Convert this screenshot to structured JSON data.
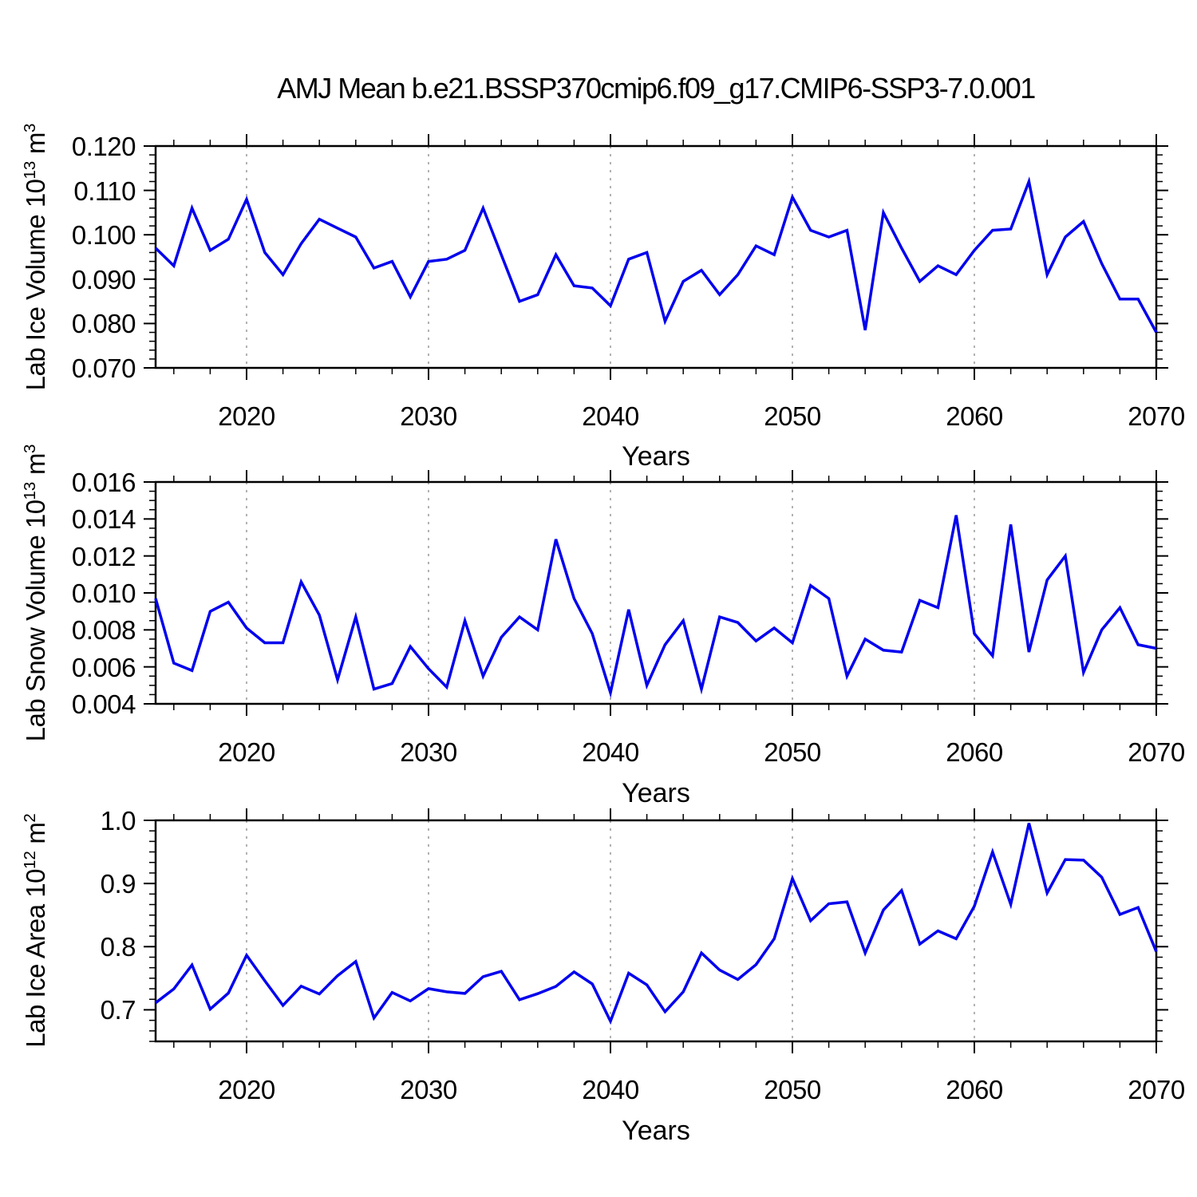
{
  "title": "AMJ Mean b.e21.BSSP370cmip6.f09_g17.CMIP6-SSP3-7.0.001",
  "line_color": "#0000ee",
  "grid_color": "#999999",
  "frame_color": "#000000",
  "x_axis": {
    "label": "Years",
    "range": [
      2015,
      2070
    ],
    "tick_labels": [
      "2020",
      "2030",
      "2040",
      "2050",
      "2060",
      "2070"
    ],
    "minor_step_years": 2,
    "gridline_years": [
      2020,
      2030,
      2040,
      2050,
      2060
    ]
  },
  "chart_data": [
    {
      "type": "line",
      "panel": "lab-ice-volume",
      "ylabel": {
        "pre": "Lab Ice Volume 10",
        "exp1": "13",
        "mid": " m",
        "exp2": "3"
      },
      "ylim": [
        0.07,
        0.12
      ],
      "ytick_labels": [
        "0.120",
        "0.110",
        "0.100",
        "0.090",
        "0.080",
        "0.070"
      ],
      "minor_per_major": 5,
      "x": [
        2015,
        2016,
        2017,
        2018,
        2019,
        2020,
        2021,
        2022,
        2023,
        2024,
        2025,
        2026,
        2027,
        2028,
        2029,
        2030,
        2031,
        2032,
        2033,
        2034,
        2035,
        2036,
        2037,
        2038,
        2039,
        2040,
        2041,
        2042,
        2043,
        2044,
        2045,
        2046,
        2047,
        2048,
        2049,
        2050,
        2051,
        2052,
        2053,
        2054,
        2055,
        2056,
        2057,
        2058,
        2059,
        2060,
        2061,
        2062,
        2063,
        2064,
        2065,
        2066,
        2067,
        2068,
        2069,
        2070
      ],
      "values": [
        0.097,
        0.093,
        0.106,
        0.0965,
        0.099,
        0.108,
        0.096,
        0.091,
        0.098,
        0.1035,
        0.1015,
        0.0995,
        0.0925,
        0.094,
        0.086,
        0.094,
        0.0945,
        0.0965,
        0.106,
        0.0955,
        0.085,
        0.0865,
        0.0955,
        0.0885,
        0.088,
        0.084,
        0.0945,
        0.096,
        0.0805,
        0.0895,
        0.092,
        0.0865,
        0.091,
        0.0975,
        0.0955,
        0.1085,
        0.101,
        0.0995,
        0.101,
        0.0785,
        0.105,
        0.097,
        0.0895,
        0.093,
        0.091,
        0.0965,
        0.101,
        0.1013,
        0.112,
        0.091,
        0.0995,
        0.103,
        0.0935,
        0.0855,
        0.0855,
        0.078
      ]
    },
    {
      "type": "line",
      "panel": "lab-snow-volume",
      "ylabel": {
        "pre": "Lab Snow Volume 10",
        "exp1": "13",
        "mid": " m",
        "exp2": "3"
      },
      "ylim": [
        0.004,
        0.016
      ],
      "ytick_labels": [
        "0.016",
        "0.014",
        "0.012",
        "0.010",
        "0.008",
        "0.006",
        "0.004"
      ],
      "minor_per_major": 4,
      "x": [
        2015,
        2016,
        2017,
        2018,
        2019,
        2020,
        2021,
        2022,
        2023,
        2024,
        2025,
        2026,
        2027,
        2028,
        2029,
        2030,
        2031,
        2032,
        2033,
        2034,
        2035,
        2036,
        2037,
        2038,
        2039,
        2040,
        2041,
        2042,
        2043,
        2044,
        2045,
        2046,
        2047,
        2048,
        2049,
        2050,
        2051,
        2052,
        2053,
        2054,
        2055,
        2056,
        2057,
        2058,
        2059,
        2060,
        2061,
        2062,
        2063,
        2064,
        2065,
        2066,
        2067,
        2068,
        2069,
        2070
      ],
      "values": [
        0.0097,
        0.0062,
        0.0058,
        0.009,
        0.0095,
        0.0081,
        0.0073,
        0.0073,
        0.0106,
        0.0088,
        0.0053,
        0.0087,
        0.0048,
        0.0051,
        0.0071,
        0.0059,
        0.0049,
        0.0085,
        0.0055,
        0.0076,
        0.0087,
        0.008,
        0.0129,
        0.0097,
        0.0078,
        0.0046,
        0.0091,
        0.005,
        0.0072,
        0.0085,
        0.0048,
        0.0087,
        0.0084,
        0.0074,
        0.0081,
        0.0073,
        0.0104,
        0.0097,
        0.0055,
        0.0075,
        0.0069,
        0.0068,
        0.0096,
        0.0092,
        0.0142,
        0.0078,
        0.0066,
        0.0137,
        0.0068,
        0.0107,
        0.012,
        0.0057,
        0.008,
        0.0092,
        0.0072,
        0.007
      ]
    },
    {
      "type": "line",
      "panel": "lab-ice-area",
      "ylabel": {
        "pre": "Lab Ice Area 10",
        "exp1": "12",
        "mid": " m",
        "exp2": "2"
      },
      "ylim": [
        0.65,
        1.0
      ],
      "ytick_labels": [
        "1.0",
        "0.9",
        "0.8",
        "0.7"
      ],
      "minor_per_major": 6,
      "x": [
        2015,
        2016,
        2017,
        2018,
        2019,
        2020,
        2021,
        2022,
        2023,
        2024,
        2025,
        2026,
        2027,
        2028,
        2029,
        2030,
        2031,
        2032,
        2033,
        2034,
        2035,
        2036,
        2037,
        2038,
        2039,
        2040,
        2041,
        2042,
        2043,
        2044,
        2045,
        2046,
        2047,
        2048,
        2049,
        2050,
        2051,
        2052,
        2053,
        2054,
        2055,
        2056,
        2057,
        2058,
        2059,
        2060,
        2061,
        2062,
        2063,
        2064,
        2065,
        2066,
        2067,
        2068,
        2069,
        2070
      ],
      "values": [
        0.711,
        0.733,
        0.771,
        0.701,
        0.7265,
        0.7865,
        0.746,
        0.707,
        0.7375,
        0.725,
        0.754,
        0.7765,
        0.687,
        0.7275,
        0.714,
        0.7335,
        0.7285,
        0.726,
        0.7525,
        0.761,
        0.716,
        0.7255,
        0.737,
        0.76,
        0.741,
        0.682,
        0.758,
        0.7395,
        0.697,
        0.7285,
        0.79,
        0.763,
        0.748,
        0.7715,
        0.8125,
        0.908,
        0.841,
        0.868,
        0.871,
        0.79,
        0.858,
        0.889,
        0.804,
        0.825,
        0.8125,
        0.864,
        0.95,
        0.867,
        0.9955,
        0.885,
        0.938,
        0.937,
        0.91,
        0.851,
        0.862,
        0.792
      ]
    }
  ]
}
